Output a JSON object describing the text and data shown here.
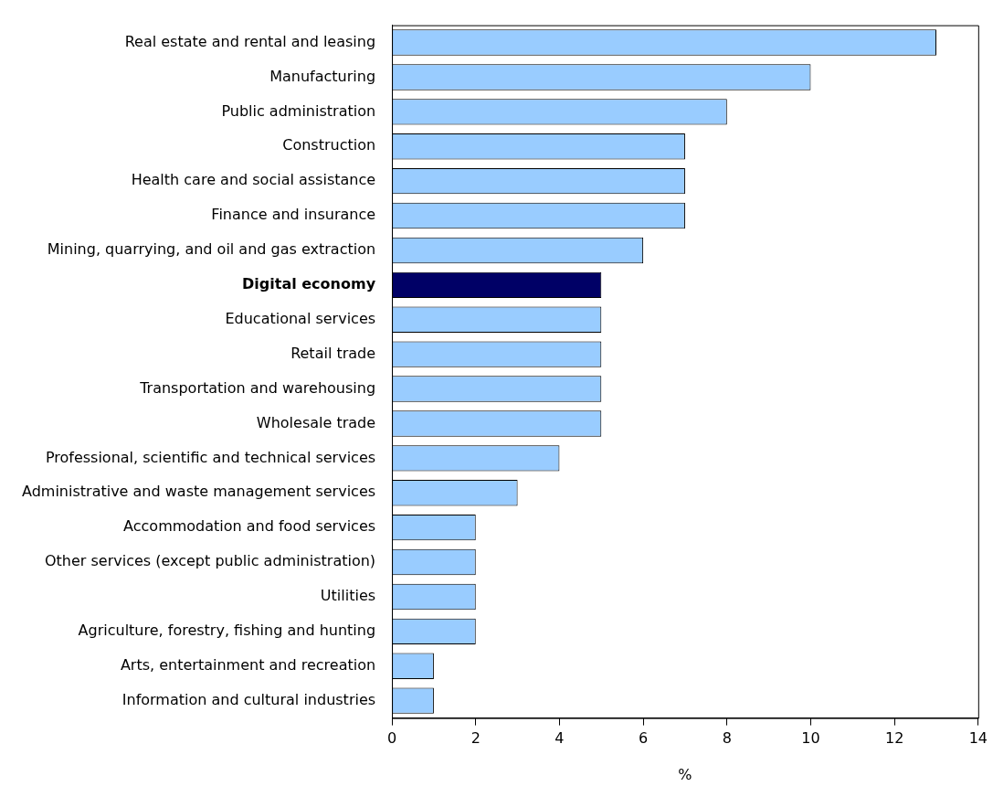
{
  "chart_data": {
    "type": "bar",
    "orientation": "horizontal",
    "xlabel": "%",
    "categories": [
      "Real estate and rental and leasing",
      "Manufacturing",
      "Public administration",
      "Construction",
      "Health care and social assistance",
      "Finance and insurance",
      "Mining, quarrying, and oil and gas extraction",
      "Digital economy",
      "Educational services",
      "Retail trade",
      "Transportation and warehousing",
      "Wholesale trade",
      "Professional, scientific and technical services",
      "Administrative and waste management services",
      "Accommodation and food services",
      "Other services (except public administration)",
      "Utilities",
      "Agriculture, forestry, fishing and hunting",
      "Arts, entertainment and recreation",
      "Information and cultural industries"
    ],
    "values": [
      13,
      10,
      8,
      7,
      7,
      7,
      6,
      5,
      5,
      5,
      5,
      5,
      4,
      3,
      2,
      2,
      2,
      2,
      1,
      1
    ],
    "colors": [
      "#99ccff",
      "#99ccff",
      "#99ccff",
      "#99ccff",
      "#99ccff",
      "#99ccff",
      "#99ccff",
      "#000066",
      "#99ccff",
      "#99ccff",
      "#99ccff",
      "#99ccff",
      "#99ccff",
      "#99ccff",
      "#99ccff",
      "#99ccff",
      "#99ccff",
      "#99ccff",
      "#99ccff",
      "#99ccff"
    ],
    "xlim": [
      0,
      14
    ],
    "xticks": [
      0,
      2,
      4,
      6,
      8,
      10,
      12,
      14
    ],
    "grid": false,
    "legend": false
  }
}
